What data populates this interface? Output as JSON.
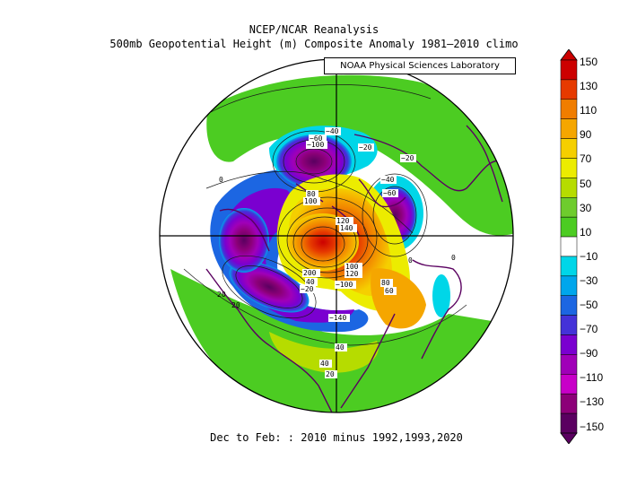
{
  "title_line1": "NCEP/NCAR Reanalysis",
  "title_line2": "500mb Geopotential Height (m) Composite Anomaly 1981–2010 climo",
  "credit": "NOAA Physical Sciences Laboratory",
  "caption": "Dec to Feb: : 2010 minus 1992,1993,2020",
  "colorbar": {
    "ticks": [
      "150",
      "130",
      "110",
      "90",
      "70",
      "50",
      "30",
      "10",
      "−10",
      "−30",
      "−50",
      "−70",
      "−90",
      "−110",
      "−130",
      "−150"
    ],
    "colors": [
      "#cc0000",
      "#e63a00",
      "#f07d00",
      "#f5a600",
      "#f5cf00",
      "#ecec00",
      "#b6dc00",
      "#6ecc2d",
      "#4ccc22",
      "#ffffff",
      "#00d6e8",
      "#00a6ec",
      "#1c66e2",
      "#4432d8",
      "#7a00d0",
      "#a000b8",
      "#c800c8",
      "#8c0078",
      "#5a0060"
    ]
  },
  "contour_labels": [
    {
      "text": "−40"
    },
    {
      "text": "−60"
    },
    {
      "text": "−100"
    },
    {
      "text": "−20"
    },
    {
      "text": "−20"
    },
    {
      "text": "−40"
    },
    {
      "text": "−60"
    },
    {
      "text": "0"
    },
    {
      "text": "80"
    },
    {
      "text": "100"
    },
    {
      "text": "120"
    },
    {
      "text": "140"
    },
    {
      "text": "0"
    },
    {
      "text": "100"
    },
    {
      "text": "120"
    },
    {
      "text": "200"
    },
    {
      "text": "40"
    },
    {
      "text": "−20"
    },
    {
      "text": "−100"
    },
    {
      "text": "80"
    },
    {
      "text": "60"
    },
    {
      "text": "−140"
    },
    {
      "text": "40"
    },
    {
      "text": "40"
    },
    {
      "text": "20"
    },
    {
      "text": "20"
    },
    {
      "text": "20"
    },
    {
      "text": "0"
    }
  ]
}
